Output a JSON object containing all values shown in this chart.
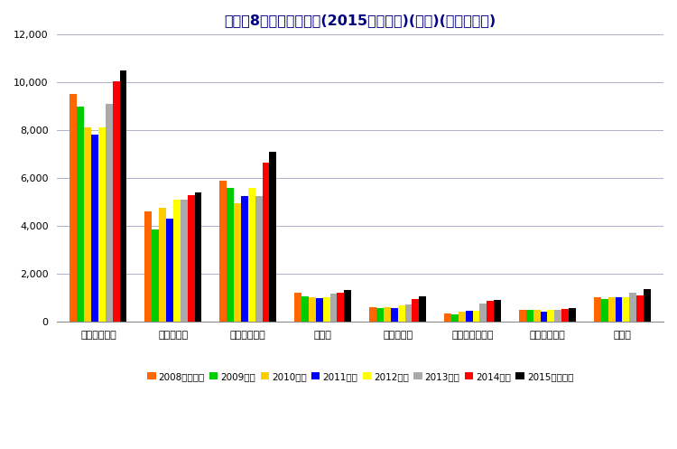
{
  "title": "乗用車8社の研究開発費(2015年度計画)(連結)(単位：億円)",
  "categories": [
    "トヨタ自動車",
    "日産自動車",
    "本田技研工業",
    "マツダ",
    "富士重工業",
    "三菱自動車工業",
    "ダイハツ工業",
    "スズキ"
  ],
  "series_labels": [
    "2008年度実績",
    "2009年度",
    "2010年度",
    "2011年度",
    "2012年度",
    "2013年度",
    "2014年度",
    "2015年度計画"
  ],
  "series_colors": [
    "#FF6600",
    "#00CC00",
    "#FFCC00",
    "#0000FF",
    "#FFFF00",
    "#AAAAAA",
    "#FF0000",
    "#000000"
  ],
  "data": {
    "2008年度実績": [
      9500,
      4600,
      5900,
      1200,
      600,
      350,
      500,
      1000
    ],
    "2009年度": [
      9000,
      3850,
      5600,
      1050,
      550,
      300,
      480,
      950
    ],
    "2010年度": [
      8100,
      4750,
      4950,
      1000,
      600,
      400,
      500,
      1000
    ],
    "2011年度": [
      7800,
      4300,
      5250,
      980,
      550,
      450,
      400,
      1000
    ],
    "2012年度": [
      8100,
      5100,
      5600,
      1000,
      680,
      450,
      480,
      1000
    ],
    "2013年度": [
      9100,
      5100,
      5250,
      1150,
      700,
      750,
      500,
      1200
    ],
    "2014年度": [
      10050,
      5300,
      6650,
      1200,
      950,
      850,
      530,
      1100
    ],
    "2015年度計画": [
      10500,
      5400,
      7100,
      1300,
      1050,
      900,
      560,
      1350
    ]
  },
  "ylim": [
    0,
    12000
  ],
  "yticks": [
    0,
    2000,
    4000,
    6000,
    8000,
    10000,
    12000
  ],
  "background_color": "#FFFFFF",
  "plot_bg_color": "#FFFFFF",
  "grid_color": "#B0B0CC",
  "title_color": "#000080",
  "title_fontsize": 11.5,
  "legend_fontsize": 7.5,
  "tick_fontsize": 8,
  "bar_width": 0.095
}
